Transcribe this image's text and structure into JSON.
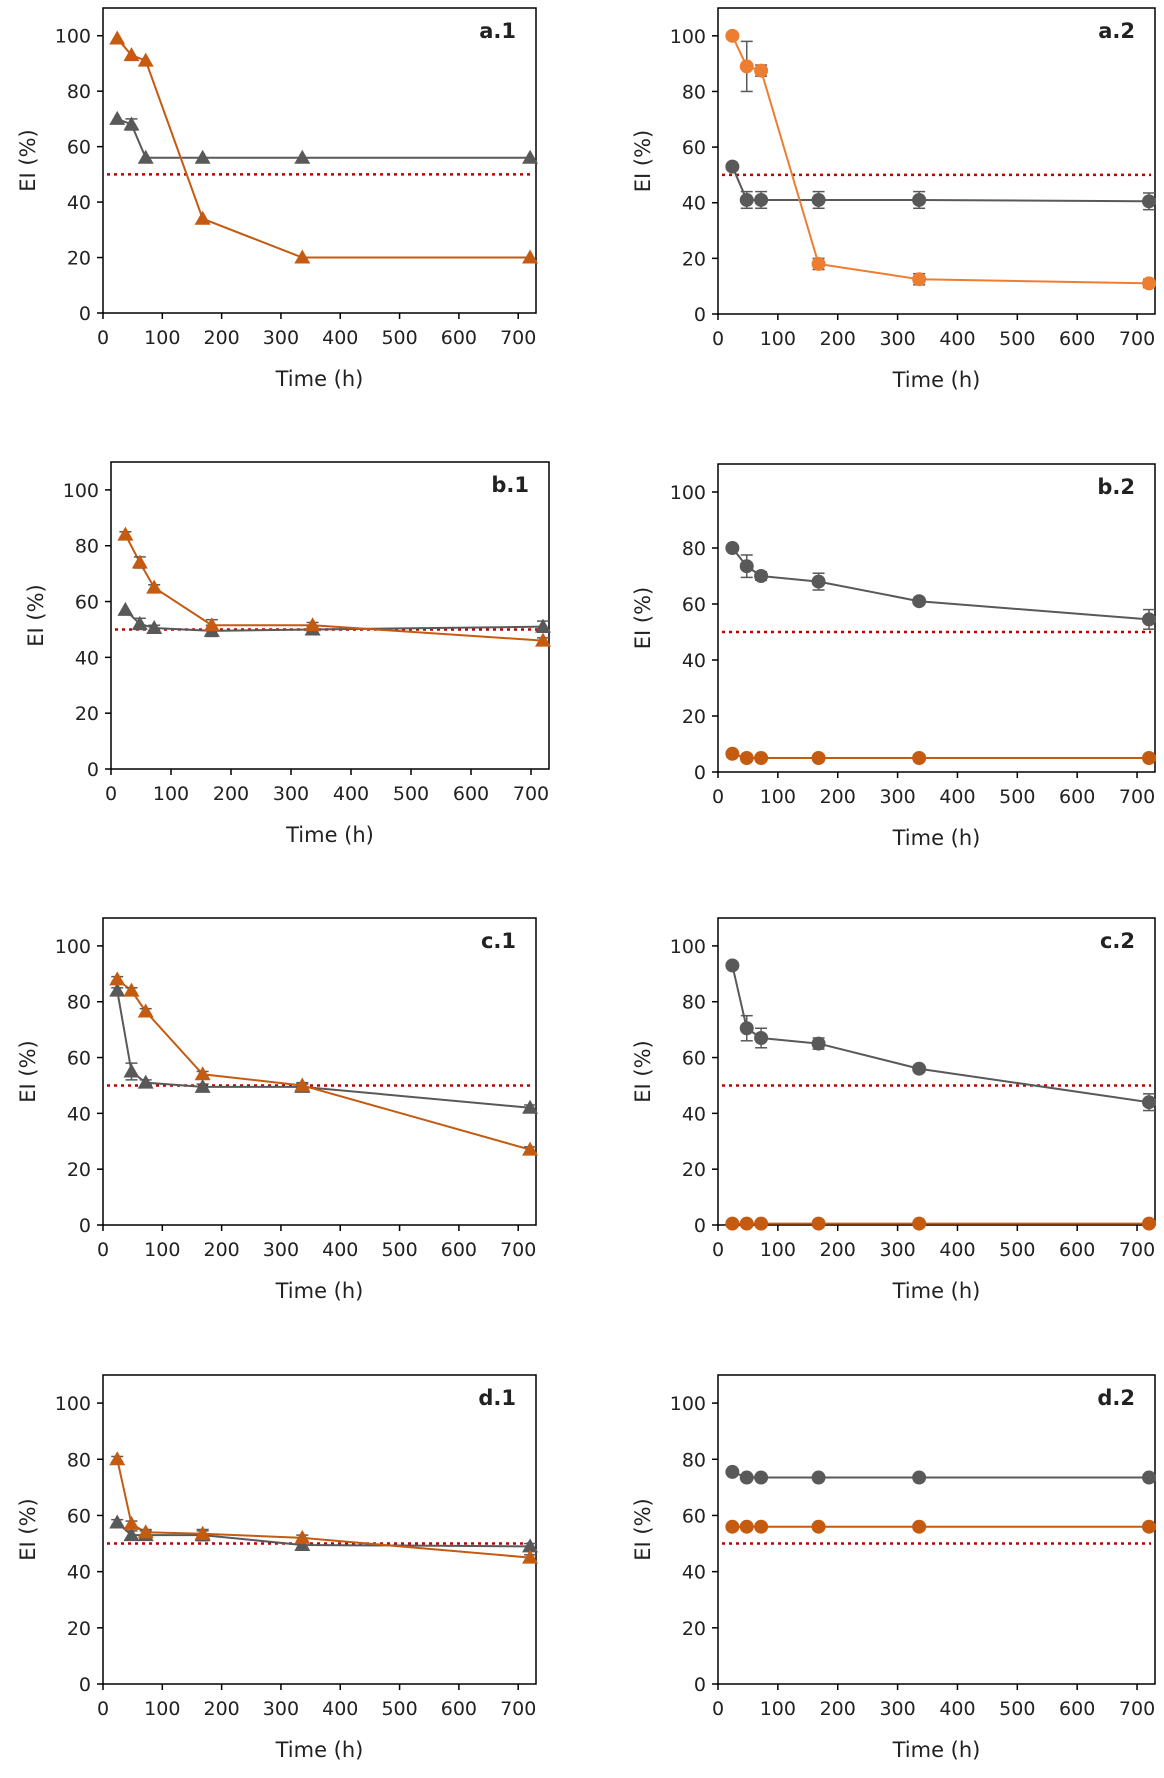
{
  "figure": {
    "colors": {
      "gray": "#595959",
      "orange_dark": "#C55A11",
      "orange_light": "#ED7D31",
      "threshold": "#C00000",
      "axis": "#000000"
    }
  },
  "chart_data": [
    {
      "id": "a1",
      "label": "a.1",
      "type": "line",
      "marker": "triangle",
      "xlabel": "Time (h)",
      "ylabel": "EI (%)",
      "xlim": [
        0,
        730
      ],
      "ylim": [
        0,
        110
      ],
      "xticks": [
        0,
        100,
        200,
        300,
        400,
        500,
        600,
        700
      ],
      "yticks": [
        0,
        20,
        40,
        60,
        80,
        100
      ],
      "threshold": 50,
      "series": [
        {
          "name": "gray",
          "color": "#595959",
          "x": [
            24,
            48,
            72,
            168,
            336,
            720
          ],
          "y": [
            70,
            68,
            56,
            56,
            56,
            56
          ],
          "err": [
            0,
            2,
            0,
            0,
            0,
            0
          ]
        },
        {
          "name": "orange",
          "color": "#C55A11",
          "x": [
            24,
            48,
            72,
            168,
            336,
            720
          ],
          "y": [
            99,
            93,
            91,
            34,
            20,
            20
          ],
          "err": [
            0,
            0,
            0,
            0,
            0,
            0
          ]
        }
      ]
    },
    {
      "id": "a2",
      "label": "a.2",
      "type": "line",
      "marker": "circle",
      "xlabel": "Time (h)",
      "ylabel": "EI (%)",
      "xlim": [
        0,
        730
      ],
      "ylim": [
        0,
        110
      ],
      "xticks": [
        0,
        100,
        200,
        300,
        400,
        500,
        600,
        700
      ],
      "yticks": [
        0,
        20,
        40,
        60,
        80,
        100
      ],
      "threshold": 50,
      "series": [
        {
          "name": "gray",
          "color": "#595959",
          "x": [
            24,
            48,
            72,
            168,
            336,
            720
          ],
          "y": [
            53,
            41,
            41,
            41,
            41,
            40.5
          ],
          "err": [
            0,
            3,
            3,
            3,
            3,
            3
          ]
        },
        {
          "name": "orange",
          "color": "#ED7D31",
          "x": [
            24,
            48,
            72,
            168,
            336,
            720
          ],
          "y": [
            100,
            89,
            87.5,
            18,
            12.5,
            11
          ],
          "err": [
            0,
            9,
            2,
            2,
            2,
            1.5
          ]
        }
      ]
    },
    {
      "id": "b1",
      "label": "b.1",
      "type": "line",
      "marker": "triangle",
      "xlabel": "Time (h)",
      "ylabel": "EI (%)",
      "xlim": [
        0,
        730
      ],
      "ylim": [
        0,
        110
      ],
      "xticks": [
        0,
        100,
        200,
        300,
        400,
        500,
        600,
        700
      ],
      "yticks": [
        0,
        20,
        40,
        60,
        80,
        100
      ],
      "threshold": 50,
      "series": [
        {
          "name": "gray",
          "color": "#595959",
          "x": [
            24,
            48,
            72,
            168,
            336,
            720
          ],
          "y": [
            57,
            52,
            50.5,
            49.5,
            50,
            51
          ],
          "err": [
            0,
            2,
            1,
            2,
            1,
            2
          ]
        },
        {
          "name": "orange",
          "color": "#C55A11",
          "x": [
            24,
            48,
            72,
            168,
            336,
            720
          ],
          "y": [
            84,
            74,
            65,
            51.5,
            51.5,
            46
          ],
          "err": [
            1,
            2,
            1,
            2,
            1,
            1
          ]
        }
      ]
    },
    {
      "id": "b2",
      "label": "b.2",
      "type": "line",
      "marker": "circle",
      "xlabel": "Time (h)",
      "ylabel": "EI (%)",
      "xlim": [
        0,
        730
      ],
      "ylim": [
        0,
        110
      ],
      "xticks": [
        0,
        100,
        200,
        300,
        400,
        500,
        600,
        700
      ],
      "yticks": [
        0,
        20,
        40,
        60,
        80,
        100
      ],
      "threshold": 50,
      "series": [
        {
          "name": "gray",
          "color": "#595959",
          "x": [
            24,
            48,
            72,
            168,
            336,
            720
          ],
          "y": [
            80,
            73.5,
            70,
            68,
            61,
            54.5
          ],
          "err": [
            0,
            4,
            1.5,
            3,
            1,
            3.5
          ]
        },
        {
          "name": "orange",
          "color": "#C55A11",
          "x": [
            24,
            48,
            72,
            168,
            336,
            720
          ],
          "y": [
            6.5,
            5,
            5,
            5,
            5,
            5
          ],
          "err": [
            0,
            0,
            0,
            1,
            1,
            0
          ]
        }
      ]
    },
    {
      "id": "c1",
      "label": "c.1",
      "type": "line",
      "marker": "triangle",
      "xlabel": "Time (h)",
      "ylabel": "EI (%)",
      "xlim": [
        0,
        730
      ],
      "ylim": [
        0,
        110
      ],
      "xticks": [
        0,
        100,
        200,
        300,
        400,
        500,
        600,
        700
      ],
      "yticks": [
        0,
        20,
        40,
        60,
        80,
        100
      ],
      "threshold": 50,
      "series": [
        {
          "name": "gray",
          "color": "#595959",
          "x": [
            24,
            48,
            72,
            168,
            336,
            720
          ],
          "y": [
            84,
            55,
            51,
            49.5,
            49.5,
            42
          ],
          "err": [
            1,
            3,
            1,
            1,
            1,
            1
          ]
        },
        {
          "name": "orange",
          "color": "#C55A11",
          "x": [
            24,
            48,
            72,
            168,
            336,
            720
          ],
          "y": [
            88,
            84,
            76.5,
            54,
            50,
            27
          ],
          "err": [
            1,
            1,
            1,
            1,
            1,
            1
          ]
        }
      ]
    },
    {
      "id": "c2",
      "label": "c.2",
      "type": "line",
      "marker": "circle",
      "xlabel": "Time (h)",
      "ylabel": "EI (%)",
      "xlim": [
        0,
        730
      ],
      "ylim": [
        0,
        110
      ],
      "xticks": [
        0,
        100,
        200,
        300,
        400,
        500,
        600,
        700
      ],
      "yticks": [
        0,
        20,
        40,
        60,
        80,
        100
      ],
      "threshold": 50,
      "series": [
        {
          "name": "gray",
          "color": "#595959",
          "x": [
            24,
            48,
            72,
            168,
            336,
            720
          ],
          "y": [
            93,
            70.5,
            67,
            65,
            56,
            44
          ],
          "err": [
            0,
            4.5,
            3.5,
            2,
            1,
            3
          ]
        },
        {
          "name": "orange",
          "color": "#C55A11",
          "x": [
            24,
            48,
            72,
            168,
            336,
            720
          ],
          "y": [
            0.5,
            0.5,
            0.5,
            0.5,
            0.5,
            0.5
          ],
          "err": [
            0,
            0,
            0,
            0,
            0,
            0
          ]
        }
      ]
    },
    {
      "id": "d1",
      "label": "d.1",
      "type": "line",
      "marker": "triangle",
      "xlabel": "Time (h)",
      "ylabel": "EI (%)",
      "xlim": [
        0,
        730
      ],
      "ylim": [
        0,
        110
      ],
      "xticks": [
        0,
        100,
        200,
        300,
        400,
        500,
        600,
        700
      ],
      "yticks": [
        0,
        20,
        40,
        60,
        80,
        100
      ],
      "threshold": 50,
      "series": [
        {
          "name": "gray",
          "color": "#595959",
          "x": [
            24,
            48,
            72,
            168,
            336,
            720
          ],
          "y": [
            57.5,
            53,
            53,
            53,
            49.5,
            49
          ],
          "err": [
            1,
            1.5,
            1.5,
            2,
            1,
            1
          ]
        },
        {
          "name": "orange",
          "color": "#C55A11",
          "x": [
            24,
            48,
            72,
            168,
            336,
            720
          ],
          "y": [
            80,
            57,
            54,
            53.5,
            52,
            45
          ],
          "err": [
            1,
            1,
            1,
            1,
            1,
            1
          ]
        }
      ]
    },
    {
      "id": "d2",
      "label": "d.2",
      "type": "line",
      "marker": "circle",
      "xlabel": "Time (h)",
      "ylabel": "EI (%)",
      "xlim": [
        0,
        730
      ],
      "ylim": [
        0,
        110
      ],
      "xticks": [
        0,
        100,
        200,
        300,
        400,
        500,
        600,
        700
      ],
      "yticks": [
        0,
        20,
        40,
        60,
        80,
        100
      ],
      "threshold": 50,
      "series": [
        {
          "name": "gray",
          "color": "#595959",
          "x": [
            24,
            48,
            72,
            168,
            336,
            720
          ],
          "y": [
            75.5,
            73.5,
            73.5,
            73.5,
            73.5,
            73.5
          ],
          "err": [
            0,
            0,
            0,
            0,
            0,
            0
          ]
        },
        {
          "name": "orange",
          "color": "#C55A11",
          "x": [
            24,
            48,
            72,
            168,
            336,
            720
          ],
          "y": [
            56,
            56,
            56,
            56,
            56,
            56
          ],
          "err": [
            0,
            0,
            0,
            0,
            0,
            0
          ]
        }
      ]
    }
  ]
}
